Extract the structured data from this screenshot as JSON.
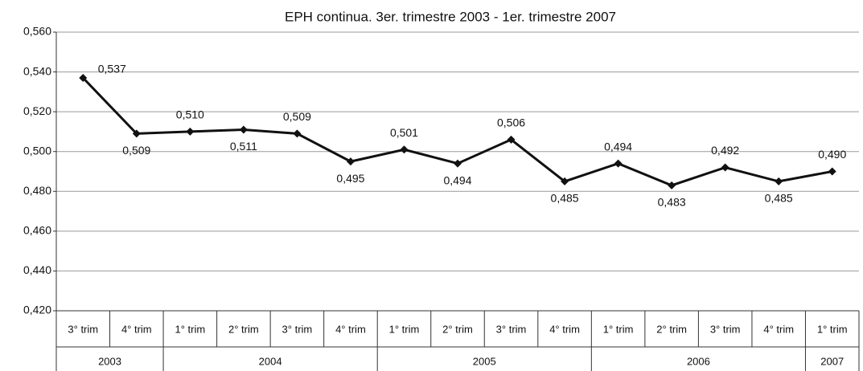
{
  "chart_data": {
    "type": "line",
    "title": "EPH continua. 3er. trimestre 2003 - 1er. trimestre 2007",
    "categories": [
      "3° trim",
      "4° trim",
      "1° trim",
      "2° trim",
      "3° trim",
      "4° trim",
      "1° trim",
      "2° trim",
      "3° trim",
      "4° trim",
      "1° trim",
      "2° trim",
      "3° trim",
      "4° trim",
      "1° trim"
    ],
    "groups": [
      {
        "label": "2003",
        "size": 2
      },
      {
        "label": "2004",
        "size": 4
      },
      {
        "label": "2005",
        "size": 4
      },
      {
        "label": "2006",
        "size": 4
      },
      {
        "label": "2007",
        "size": 1
      }
    ],
    "series": [
      {
        "color": "#111111",
        "values": [
          0.537,
          0.509,
          0.51,
          0.511,
          0.509,
          0.495,
          0.501,
          0.494,
          0.506,
          0.485,
          0.494,
          0.483,
          0.492,
          0.485,
          0.49
        ],
        "value_labels": [
          "0,537",
          "0,509",
          "0,510",
          "0,511",
          "0,509",
          "0,495",
          "0,501",
          "0,494",
          "0,506",
          "0,485",
          "0,494",
          "0,483",
          "0,492",
          "0,485",
          "0,490"
        ]
      }
    ],
    "ylim": [
      0.42,
      0.56
    ],
    "yticks": [
      {
        "value": 0.42,
        "label": "0,420"
      },
      {
        "value": 0.44,
        "label": "0,440"
      },
      {
        "value": 0.46,
        "label": "0,460"
      },
      {
        "value": 0.48,
        "label": "0,480"
      },
      {
        "value": 0.5,
        "label": "0,500"
      },
      {
        "value": 0.52,
        "label": "0,520"
      },
      {
        "value": 0.54,
        "label": "0,540"
      },
      {
        "value": 0.56,
        "label": "0,560"
      }
    ],
    "grid": true
  }
}
